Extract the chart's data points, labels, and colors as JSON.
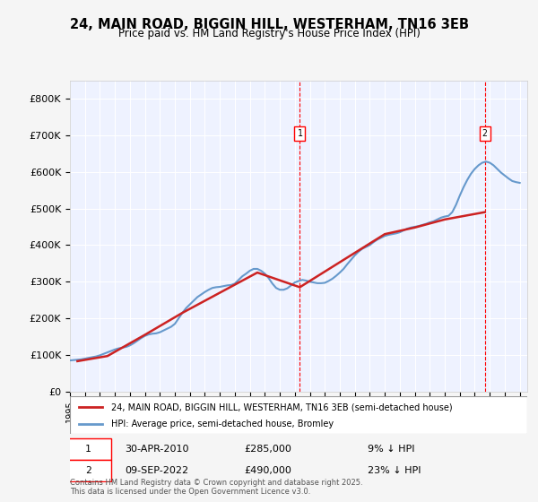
{
  "title": "24, MAIN ROAD, BIGGIN HILL, WESTERHAM, TN16 3EB",
  "subtitle": "Price paid vs. HM Land Registry's House Price Index (HPI)",
  "xlabel": "",
  "ylabel": "",
  "ylim": [
    0,
    850000
  ],
  "yticks": [
    0,
    100000,
    200000,
    300000,
    400000,
    500000,
    600000,
    700000,
    800000
  ],
  "ytick_labels": [
    "£0",
    "£100K",
    "£200K",
    "£300K",
    "£400K",
    "£500K",
    "£600K",
    "£700K",
    "£800K"
  ],
  "background_color": "#f0f4ff",
  "plot_bg_color": "#eef2ff",
  "grid_color": "#ffffff",
  "hpi_color": "#6699cc",
  "price_color": "#cc2222",
  "transaction1": {
    "date": "30-APR-2010",
    "price": 285000,
    "label": "1",
    "note": "9% ↓ HPI"
  },
  "transaction2": {
    "date": "09-SEP-2022",
    "price": 490000,
    "label": "2",
    "note": "23% ↓ HPI"
  },
  "legend_label1": "24, MAIN ROAD, BIGGIN HILL, WESTERHAM, TN16 3EB (semi-detached house)",
  "legend_label2": "HPI: Average price, semi-detached house, Bromley",
  "footnote": "Contains HM Land Registry data © Crown copyright and database right 2025.\nThis data is licensed under the Open Government Licence v3.0.",
  "hpi_data_x": [
    1995,
    1995.25,
    1995.5,
    1995.75,
    1996,
    1996.25,
    1996.5,
    1996.75,
    1997,
    1997.25,
    1997.5,
    1997.75,
    1998,
    1998.25,
    1998.5,
    1998.75,
    1999,
    1999.25,
    1999.5,
    1999.75,
    2000,
    2000.25,
    2000.5,
    2000.75,
    2001,
    2001.25,
    2001.5,
    2001.75,
    2002,
    2002.25,
    2002.5,
    2002.75,
    2003,
    2003.25,
    2003.5,
    2003.75,
    2004,
    2004.25,
    2004.5,
    2004.75,
    2005,
    2005.25,
    2005.5,
    2005.75,
    2006,
    2006.25,
    2006.5,
    2006.75,
    2007,
    2007.25,
    2007.5,
    2007.75,
    2008,
    2008.25,
    2008.5,
    2008.75,
    2009,
    2009.25,
    2009.5,
    2009.75,
    2010,
    2010.25,
    2010.5,
    2010.75,
    2011,
    2011.25,
    2011.5,
    2011.75,
    2012,
    2012.25,
    2012.5,
    2012.75,
    2013,
    2013.25,
    2013.5,
    2013.75,
    2014,
    2014.25,
    2014.5,
    2014.75,
    2015,
    2015.25,
    2015.5,
    2015.75,
    2016,
    2016.25,
    2016.5,
    2016.75,
    2017,
    2017.25,
    2017.5,
    2017.75,
    2018,
    2018.25,
    2018.5,
    2018.75,
    2019,
    2019.25,
    2019.5,
    2019.75,
    2020,
    2020.25,
    2020.5,
    2020.75,
    2021,
    2021.25,
    2021.5,
    2021.75,
    2022,
    2022.25,
    2022.5,
    2022.75,
    2023,
    2023.25,
    2023.5,
    2023.75,
    2024,
    2024.25,
    2024.5,
    2024.75,
    2025
  ],
  "hpi_data_y": [
    85000,
    86000,
    87000,
    88000,
    90000,
    92000,
    94000,
    96000,
    99000,
    103000,
    107000,
    111000,
    115000,
    118000,
    120000,
    122000,
    126000,
    132000,
    139000,
    146000,
    152000,
    156000,
    158000,
    159000,
    162000,
    167000,
    172000,
    177000,
    185000,
    200000,
    215000,
    228000,
    238000,
    248000,
    258000,
    265000,
    272000,
    278000,
    283000,
    285000,
    286000,
    288000,
    290000,
    291000,
    295000,
    305000,
    315000,
    322000,
    330000,
    335000,
    335000,
    330000,
    322000,
    310000,
    295000,
    283000,
    278000,
    278000,
    282000,
    290000,
    298000,
    302000,
    305000,
    303000,
    300000,
    298000,
    296000,
    296000,
    297000,
    302000,
    308000,
    316000,
    325000,
    335000,
    348000,
    360000,
    372000,
    382000,
    390000,
    395000,
    400000,
    408000,
    415000,
    420000,
    425000,
    428000,
    430000,
    432000,
    435000,
    440000,
    445000,
    448000,
    450000,
    452000,
    455000,
    458000,
    462000,
    465000,
    470000,
    475000,
    478000,
    480000,
    490000,
    510000,
    535000,
    558000,
    578000,
    595000,
    608000,
    618000,
    625000,
    628000,
    625000,
    618000,
    608000,
    598000,
    590000,
    582000,
    575000,
    572000,
    570000
  ],
  "price_data_x": [
    1995.5,
    1997.5,
    2000,
    2002.5,
    2007.5,
    2010.33,
    2016,
    2018,
    2020,
    2022.67
  ],
  "price_data_y": [
    83000,
    97000,
    155000,
    215000,
    325000,
    285000,
    430000,
    448000,
    470000,
    490000
  ],
  "xtick_years": [
    1995,
    1996,
    1997,
    1998,
    1999,
    2000,
    2001,
    2002,
    2003,
    2004,
    2005,
    2006,
    2007,
    2008,
    2009,
    2010,
    2011,
    2012,
    2013,
    2014,
    2015,
    2016,
    2017,
    2018,
    2019,
    2020,
    2021,
    2022,
    2023,
    2024,
    2025
  ]
}
